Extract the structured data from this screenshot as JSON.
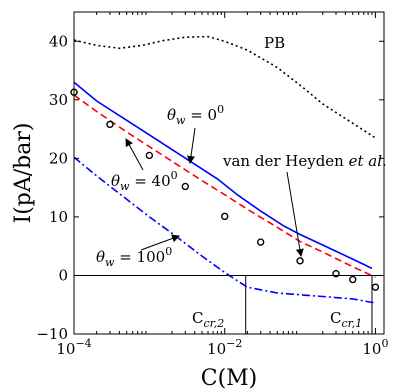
{
  "chart_data": {
    "type": "line",
    "xlabel": "C(M)",
    "ylabel": "I(pA/bar)",
    "x_scale": "log",
    "xlim": [
      0.0001,
      1.3
    ],
    "ylim": [
      -10,
      45
    ],
    "x_ticks": [
      {
        "value": 0.0001,
        "base": "10",
        "exp": "−4"
      },
      {
        "value": 0.01,
        "base": "10",
        "exp": "−2"
      },
      {
        "value": 1,
        "base": "10",
        "exp": "0"
      }
    ],
    "y_ticks": [
      -10,
      0,
      10,
      20,
      30,
      40
    ],
    "grid": false,
    "zero_line": true,
    "series": [
      {
        "name": "PB",
        "style": "dotted",
        "color": "#000000",
        "points": [
          [
            0.0001,
            40.2
          ],
          [
            0.0002,
            39.3
          ],
          [
            0.0004,
            38.8
          ],
          [
            0.0008,
            39.3
          ],
          [
            0.0015,
            40.1
          ],
          [
            0.003,
            40.7
          ],
          [
            0.006,
            40.8
          ],
          [
            0.01,
            40.0
          ],
          [
            0.02,
            38.5
          ],
          [
            0.05,
            35.5
          ],
          [
            0.1,
            32.5
          ],
          [
            0.2,
            29.3
          ],
          [
            0.5,
            26.0
          ],
          [
            1.0,
            23.5
          ]
        ]
      },
      {
        "name": "θw = 0°",
        "style": "solid",
        "color": "#0000ff",
        "points": [
          [
            0.0001,
            33.0
          ],
          [
            0.0002,
            29.8
          ],
          [
            0.0005,
            26.5
          ],
          [
            0.001,
            24.0
          ],
          [
            0.002,
            21.5
          ],
          [
            0.004,
            19.0
          ],
          [
            0.008,
            16.5
          ],
          [
            0.015,
            13.7
          ],
          [
            0.03,
            11.0
          ],
          [
            0.06,
            8.5
          ],
          [
            0.1,
            7.0
          ],
          [
            0.2,
            5.2
          ],
          [
            0.5,
            2.8
          ],
          [
            0.9,
            1.2
          ]
        ]
      },
      {
        "name": "θw = 40°",
        "style": "dashed",
        "color": "#ff0000",
        "points": [
          [
            0.0001,
            30.8
          ],
          [
            0.0002,
            28.0
          ],
          [
            0.0005,
            24.5
          ],
          [
            0.001,
            22.0
          ],
          [
            0.002,
            19.5
          ],
          [
            0.005,
            16.2
          ],
          [
            0.01,
            13.8
          ],
          [
            0.02,
            11.3
          ],
          [
            0.05,
            8.2
          ],
          [
            0.1,
            5.8
          ],
          [
            0.2,
            4.0
          ],
          [
            0.5,
            1.5
          ],
          [
            1.0,
            -0.3
          ]
        ]
      },
      {
        "name": "θw = 100°",
        "style": "dashdot",
        "color": "#0000ff",
        "points": [
          [
            0.0001,
            20.2
          ],
          [
            0.0002,
            17.0
          ],
          [
            0.0005,
            13.0
          ],
          [
            0.001,
            10.0
          ],
          [
            0.002,
            7.2
          ],
          [
            0.005,
            3.3
          ],
          [
            0.01,
            0.5
          ],
          [
            0.02,
            -2.0
          ],
          [
            0.05,
            -3.0
          ],
          [
            0.1,
            -3.3
          ],
          [
            0.2,
            -3.6
          ],
          [
            0.5,
            -4.0
          ],
          [
            1.0,
            -4.7
          ]
        ]
      },
      {
        "name": "van der Heyden et al.",
        "style": "markers",
        "color": "#000000",
        "points": [
          [
            0.0001,
            31.3
          ],
          [
            0.0003,
            25.8
          ],
          [
            0.001,
            20.5
          ],
          [
            0.003,
            15.2
          ],
          [
            0.01,
            10.1
          ],
          [
            0.03,
            5.7
          ],
          [
            0.1,
            2.5
          ],
          [
            0.3,
            0.3
          ],
          [
            0.5,
            -0.7
          ],
          [
            1.0,
            -2.0
          ]
        ]
      }
    ],
    "annotations": {
      "pb": "PB",
      "theta0": {
        "prefix": "θ",
        "sub": "w",
        "eq": " = 0",
        "sup": "0"
      },
      "theta40": {
        "prefix": "θ",
        "sub": "w",
        "eq": " = 40",
        "sup": "0"
      },
      "theta100": {
        "prefix": "θ",
        "sub": "w",
        "eq": " = 100",
        "sup": "0"
      },
      "vdh": {
        "main": "van der Heyden ",
        "em": "et al."
      },
      "ccr2": {
        "base": "C",
        "sub": "cr,2"
      },
      "ccr1": {
        "base": "C",
        "sub": "cr,1"
      }
    },
    "critical_concentrations": {
      "ccr2": 0.019,
      "ccr1": 0.9
    }
  }
}
